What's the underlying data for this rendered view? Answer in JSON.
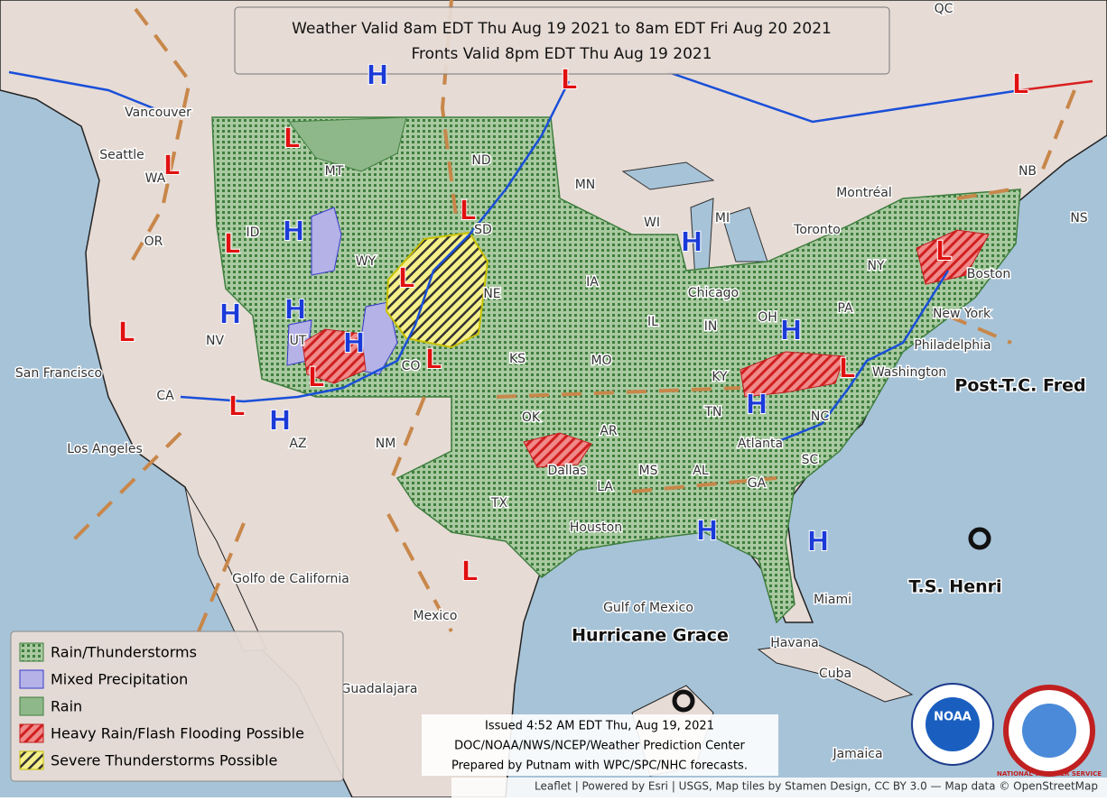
{
  "header": {
    "title_line1": "Weather Valid 8am EDT Thu Aug 19 2021 to 8am EDT Fri Aug 20 2021",
    "title_line2": "Fronts Valid 8pm EDT Thu Aug 19 2021"
  },
  "legend": {
    "items": [
      "Rain/Thunderstorms",
      "Mixed Precipitation",
      "Rain",
      "Heavy Rain/Flash Flooding Possible",
      "Severe Thunderstorms Possible"
    ]
  },
  "issued": {
    "lines": [
      "Issued 4:52 AM EDT Thu, Aug 19, 2021",
      "DOC/NOAA/NWS/NCEP/Weather Prediction Center",
      "Prepared by Putnam with WPC/SPC/NHC forecasts."
    ]
  },
  "attribution": "Leaflet | Powered by Esri | USGS, Map tiles by Stamen Design, CC BY 3.0 — Map data © OpenStreetMap",
  "places": [
    "Vancouver",
    "Seattle",
    "WA",
    "OR",
    "ID",
    "MT",
    "WY",
    "ND",
    "SD",
    "MN",
    "WI",
    "MI",
    "NE",
    "IA",
    "IL",
    "IN",
    "OH",
    "PA",
    "NY",
    "Toronto",
    "Montréal",
    "QC",
    "NB",
    "NS",
    "Chicago",
    "New York",
    "Philadelphia",
    "Boston",
    "Washington",
    "KY",
    "TN",
    "NC",
    "SC",
    "GA",
    "AL",
    "MS",
    "LA",
    "AR",
    "OK",
    "TX",
    "KS",
    "MO",
    "NV",
    "UT",
    "CO",
    "AZ",
    "NM",
    "CA",
    "San Francisco",
    "Los Angeles",
    "Dallas",
    "Houston",
    "Atlanta",
    "Miami",
    "Havana",
    "Cuba",
    "Jamaica",
    "Guadalajara",
    "Mexico",
    "Golfo de California",
    "Gulf of Mexico"
  ],
  "storms": [
    "Hurricane Grace",
    "T.S. Henri",
    "Post-T.C. Fred"
  ],
  "pressure_centers": [
    "L",
    "L",
    "L",
    "L",
    "L",
    "L",
    "L",
    "L",
    "L",
    "L",
    "L",
    "L",
    "L",
    "L",
    "H",
    "H",
    "H",
    "H",
    "H",
    "H",
    "H",
    "H",
    "H",
    "H",
    "H"
  ],
  "logos": [
    "NOAA",
    "NATIONAL WEATHER SERVICE"
  ]
}
